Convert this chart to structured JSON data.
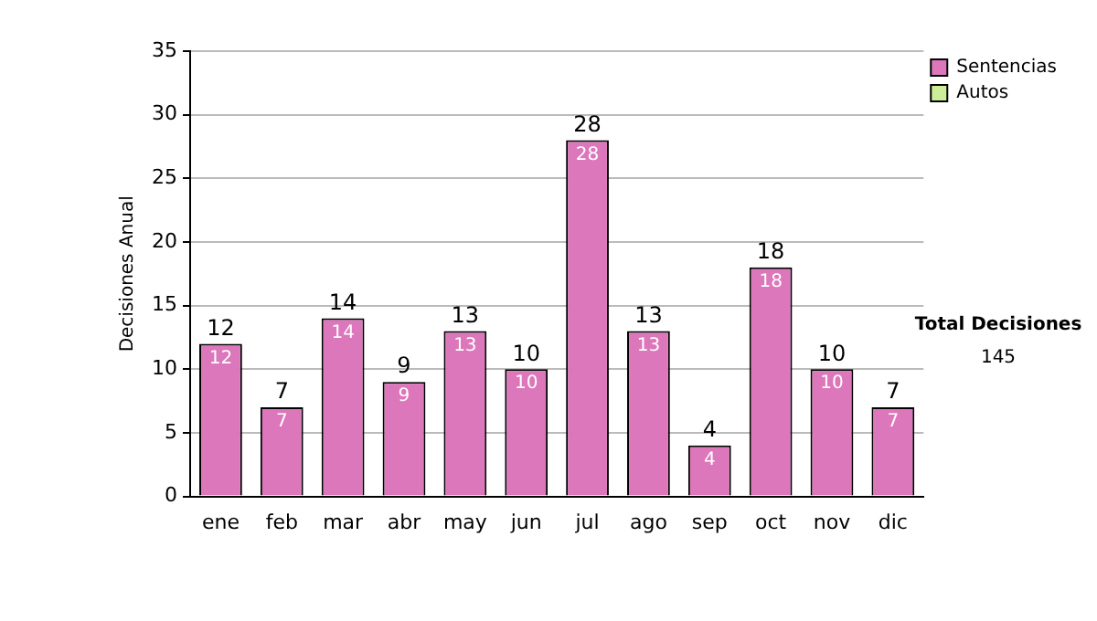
{
  "chart_data": {
    "type": "bar",
    "ylabel": "Decisiones Anual",
    "categories": [
      "ene",
      "feb",
      "mar",
      "abr",
      "may",
      "jun",
      "jul",
      "ago",
      "sep",
      "oct",
      "nov",
      "dic"
    ],
    "series": [
      {
        "name": "Sentencias",
        "color": "#dd77bb",
        "values": [
          12,
          7,
          14,
          9,
          13,
          10,
          28,
          13,
          4,
          18,
          10,
          7
        ],
        "value_labels": [
          "12",
          "7",
          "14",
          "9",
          "13",
          "10",
          "28",
          "13",
          "4",
          "18",
          "10",
          "7"
        ]
      },
      {
        "name": "Autos",
        "color": "#ccee99",
        "values": [
          0,
          0,
          0,
          0,
          0,
          0,
          0,
          0,
          0,
          0,
          0,
          0
        ]
      }
    ],
    "stacked": true,
    "totals": [
      "12",
      "7",
      "14",
      "9",
      "13",
      "10",
      "28",
      "13",
      "4",
      "18",
      "10",
      "7"
    ],
    "ylim": [
      0,
      35
    ],
    "yticks": [
      0,
      5,
      10,
      15,
      20,
      25,
      30,
      35
    ],
    "grid": "y",
    "legend": "right",
    "annotations": [
      "Total Decisiones",
      "145"
    ]
  }
}
